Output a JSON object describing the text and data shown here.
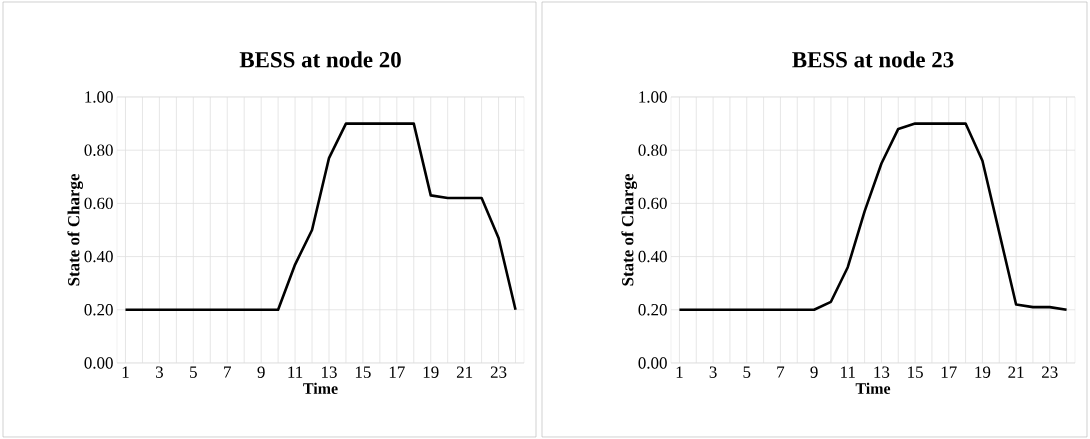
{
  "chart_data": [
    {
      "type": "line",
      "title": "BESS at node 20",
      "xlabel": "Time",
      "ylabel": "State of Charge",
      "categories": [
        "1",
        null,
        "3",
        null,
        "5",
        null,
        "7",
        null,
        "9",
        null,
        "11",
        null,
        "13",
        null,
        "15",
        null,
        "17",
        null,
        "19",
        null,
        "21",
        null,
        "23",
        null
      ],
      "series": [
        {
          "color": "#000000",
          "values": [
            0.2,
            0.2,
            0.2,
            0.2,
            0.2,
            0.2,
            0.2,
            0.2,
            0.2,
            0.2,
            0.37,
            0.5,
            0.77,
            0.9,
            0.9,
            0.9,
            0.9,
            0.9,
            0.63,
            0.62,
            0.62,
            0.62,
            0.47,
            0.2
          ]
        }
      ],
      "ylim": [
        0,
        1
      ],
      "yticks": [
        {
          "value": 0,
          "label": "0.00"
        },
        {
          "value": 0.2,
          "label": "0.20"
        },
        {
          "value": 0.4,
          "label": "0.40"
        },
        {
          "value": 0.6,
          "label": "0.60"
        },
        {
          "value": 0.8,
          "label": "0.80"
        },
        {
          "value": 1,
          "label": "1.00"
        }
      ],
      "grid": true,
      "marker": "none",
      "line_style": "solid"
    },
    {
      "type": "line",
      "title": "BESS at node 23",
      "xlabel": "Time",
      "ylabel": "State of Charge",
      "categories": [
        "1",
        null,
        "3",
        null,
        "5",
        null,
        "7",
        null,
        "9",
        null,
        "11",
        null,
        "13",
        null,
        "15",
        null,
        "17",
        null,
        "19",
        null,
        "21",
        null,
        "23",
        null
      ],
      "series": [
        {
          "color": "#000000",
          "values": [
            0.2,
            0.2,
            0.2,
            0.2,
            0.2,
            0.2,
            0.2,
            0.2,
            0.2,
            0.23,
            0.36,
            0.57,
            0.75,
            0.88,
            0.9,
            0.9,
            0.9,
            0.9,
            0.76,
            0.49,
            0.22,
            0.21,
            0.21,
            0.2
          ]
        }
      ],
      "ylim": [
        0,
        1
      ],
      "yticks": [
        {
          "value": 0,
          "label": "0.00"
        },
        {
          "value": 0.2,
          "label": "0.20"
        },
        {
          "value": 0.4,
          "label": "0.40"
        },
        {
          "value": 0.6,
          "label": "0.60"
        },
        {
          "value": 0.8,
          "label": "0.80"
        },
        {
          "value": 1,
          "label": "1.00"
        }
      ],
      "grid": true,
      "marker": "none",
      "line_style": "solid"
    }
  ]
}
